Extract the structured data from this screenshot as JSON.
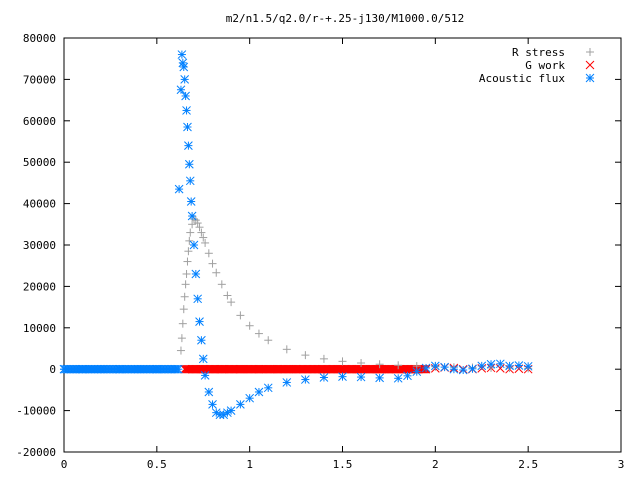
{
  "chart_data": {
    "type": "scatter",
    "title": "m2/n1.5/q2.0/r-+.25-j130/M1000.0/512",
    "xlabel": "",
    "ylabel": "",
    "xlim": [
      0,
      3
    ],
    "ylim": [
      -20000,
      80000
    ],
    "x_ticks": [
      "0",
      "0.5",
      "1",
      "1.5",
      "2",
      "2.5",
      "3"
    ],
    "y_ticks": [
      "-20000",
      "-10000",
      "0",
      "10000",
      "20000",
      "30000",
      "40000",
      "50000",
      "60000",
      "70000",
      "80000"
    ],
    "grid": false,
    "legend_position": "top-right",
    "series": [
      {
        "name": "R stress",
        "marker": "plus",
        "color": "#a0a0a0",
        "x": [
          0.63,
          0.635,
          0.64,
          0.645,
          0.65,
          0.655,
          0.66,
          0.665,
          0.67,
          0.675,
          0.68,
          0.69,
          0.7,
          0.71,
          0.72,
          0.73,
          0.74,
          0.75,
          0.76,
          0.78,
          0.8,
          0.82,
          0.85,
          0.88,
          0.9,
          0.95,
          1.0,
          1.05,
          1.1,
          1.2,
          1.3,
          1.4,
          1.5,
          1.6,
          1.7,
          1.8,
          1.9,
          2.0,
          2.1,
          2.2,
          2.3,
          2.4,
          2.5
        ],
        "y": [
          4500,
          7500,
          11000,
          14500,
          17500,
          20500,
          23000,
          26000,
          28500,
          31000,
          33000,
          35000,
          36300,
          36000,
          35300,
          34300,
          33000,
          31800,
          30500,
          28000,
          25500,
          23300,
          20500,
          17800,
          16200,
          13000,
          10500,
          8600,
          7000,
          4800,
          3400,
          2500,
          1900,
          1500,
          1200,
          950,
          750,
          600,
          480,
          400,
          320,
          260,
          200
        ]
      },
      {
        "name": "G work",
        "marker": "cross",
        "color": "#ff0000",
        "x": [
          0.65,
          0.75,
          0.85,
          0.95,
          1.05,
          1.15,
          1.25,
          1.35,
          1.45,
          1.55,
          1.65,
          1.75,
          1.85,
          1.95,
          2.0,
          2.05,
          2.1,
          2.15,
          2.2,
          2.25,
          2.3,
          2.35,
          2.4,
          2.45,
          2.5
        ],
        "y": [
          0,
          0,
          0,
          0,
          0,
          0,
          0,
          0,
          0,
          0,
          0,
          0,
          0,
          0,
          200,
          400,
          300,
          0,
          0,
          200,
          300,
          200,
          0,
          100,
          0
        ]
      },
      {
        "name": "Acoustic flux",
        "marker": "star",
        "color": "#0080ff",
        "x": [
          0.0,
          0.1,
          0.2,
          0.3,
          0.4,
          0.5,
          0.6,
          0.62,
          0.63,
          0.635,
          0.64,
          0.645,
          0.65,
          0.655,
          0.66,
          0.665,
          0.67,
          0.675,
          0.68,
          0.685,
          0.69,
          0.7,
          0.71,
          0.72,
          0.73,
          0.74,
          0.75,
          0.76,
          0.78,
          0.8,
          0.82,
          0.84,
          0.86,
          0.88,
          0.9,
          0.95,
          1.0,
          1.05,
          1.1,
          1.2,
          1.3,
          1.4,
          1.5,
          1.6,
          1.7,
          1.8,
          1.85,
          1.9,
          1.95,
          2.0,
          2.05,
          2.1,
          2.15,
          2.2,
          2.25,
          2.3,
          2.35,
          2.4,
          2.45,
          2.5
        ],
        "y": [
          0,
          0,
          0,
          0,
          0,
          0,
          0,
          43500,
          67500,
          76000,
          74000,
          73000,
          70000,
          66000,
          62500,
          58500,
          54000,
          49500,
          45500,
          40500,
          37000,
          30000,
          23000,
          17000,
          11500,
          7000,
          2500,
          -1500,
          -5500,
          -8500,
          -10500,
          -11000,
          -11000,
          -10500,
          -10000,
          -8500,
          -7000,
          -5500,
          -4500,
          -3200,
          -2500,
          -2000,
          -1800,
          -1900,
          -2100,
          -2200,
          -1600,
          -600,
          300,
          800,
          500,
          0,
          -200,
          100,
          800,
          1200,
          1300,
          800,
          900,
          700
        ]
      }
    ]
  }
}
